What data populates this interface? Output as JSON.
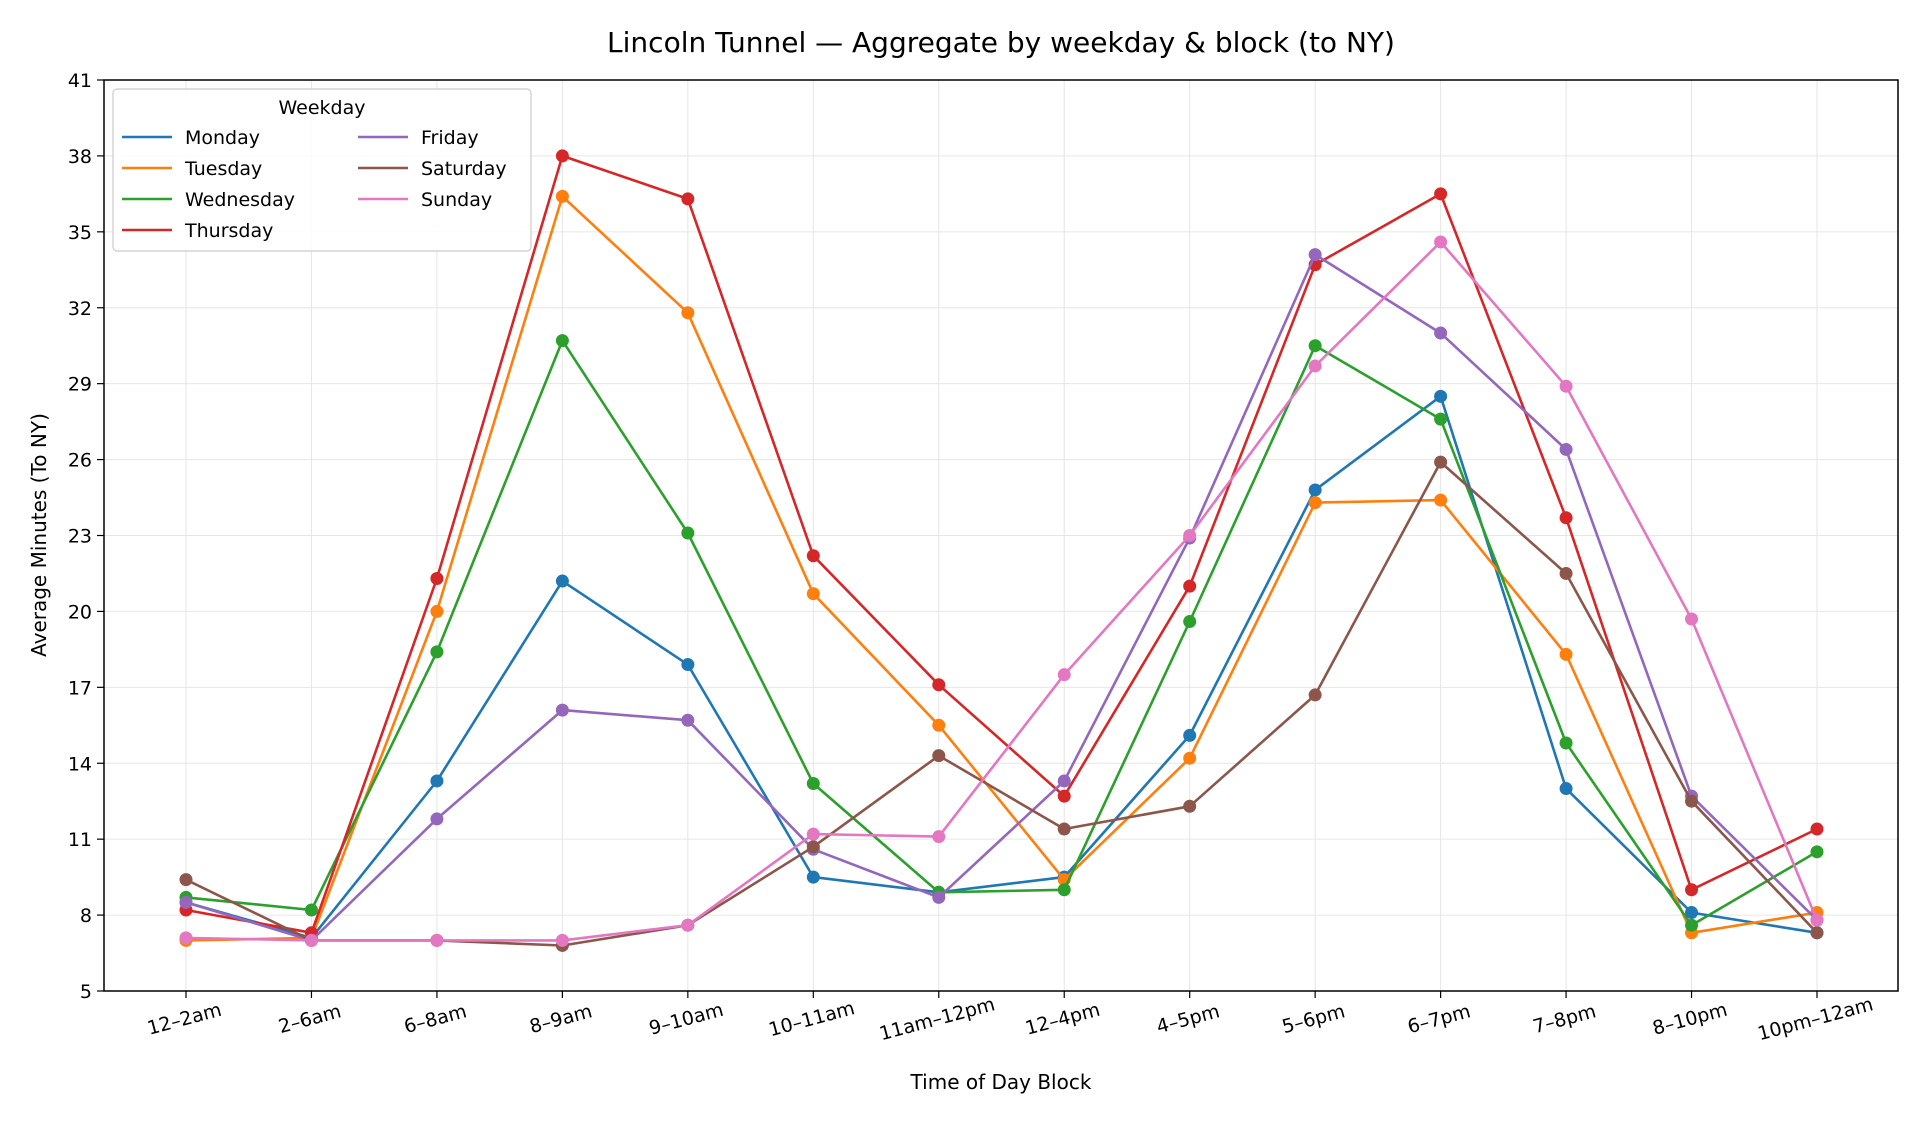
{
  "chart_data": {
    "type": "line",
    "title": "Lincoln Tunnel — Aggregate by weekday & block (to NY)",
    "xlabel": "Time of Day Block",
    "ylabel": "Average Minutes (To NY)",
    "categories": [
      "12–2am",
      "2–6am",
      "6–8am",
      "8–9am",
      "9–10am",
      "10–11am",
      "11am–12pm",
      "12–4pm",
      "4–5pm",
      "5–6pm",
      "6–7pm",
      "7–8pm",
      "8–10pm",
      "10pm–12am"
    ],
    "ylim": [
      5,
      41
    ],
    "yticks": [
      5,
      8,
      11,
      14,
      17,
      20,
      23,
      26,
      29,
      32,
      35,
      38,
      41
    ],
    "grid": true,
    "legend": {
      "title": "Weekday",
      "placement": "top-left",
      "columns": 2
    },
    "series": [
      {
        "name": "Monday",
        "color": "#1f77b4",
        "values": [
          8.5,
          7.1,
          13.3,
          21.2,
          17.9,
          9.5,
          8.9,
          9.5,
          15.1,
          24.8,
          28.5,
          13.0,
          8.1,
          7.3
        ]
      },
      {
        "name": "Tuesday",
        "color": "#ff7f0e",
        "values": [
          7.0,
          7.1,
          20.0,
          36.4,
          31.8,
          20.7,
          15.5,
          9.4,
          14.2,
          24.3,
          24.4,
          18.3,
          7.3,
          8.1
        ]
      },
      {
        "name": "Wednesday",
        "color": "#2ca02c",
        "values": [
          8.7,
          8.2,
          18.4,
          30.7,
          23.1,
          13.2,
          8.9,
          9.0,
          19.6,
          30.5,
          27.6,
          14.8,
          7.6,
          10.5
        ]
      },
      {
        "name": "Thursday",
        "color": "#d62728",
        "values": [
          8.2,
          7.3,
          21.3,
          38.0,
          36.3,
          22.2,
          17.1,
          12.7,
          21.0,
          33.7,
          36.5,
          23.7,
          9.0,
          11.4
        ]
      },
      {
        "name": "Friday",
        "color": "#9467bd",
        "values": [
          8.5,
          7.0,
          11.8,
          16.1,
          15.7,
          10.6,
          8.7,
          13.3,
          22.9,
          34.1,
          31.0,
          26.4,
          12.7,
          7.8
        ]
      },
      {
        "name": "Saturday",
        "color": "#8c564b",
        "values": [
          9.4,
          7.0,
          7.0,
          6.8,
          7.6,
          10.7,
          14.3,
          11.4,
          12.3,
          16.7,
          25.9,
          21.5,
          12.5,
          7.3
        ]
      },
      {
        "name": "Sunday",
        "color": "#e377c2",
        "values": [
          7.1,
          7.0,
          7.0,
          7.0,
          7.6,
          11.2,
          11.1,
          17.5,
          23.0,
          29.7,
          34.6,
          28.9,
          19.7,
          7.8
        ]
      }
    ]
  }
}
